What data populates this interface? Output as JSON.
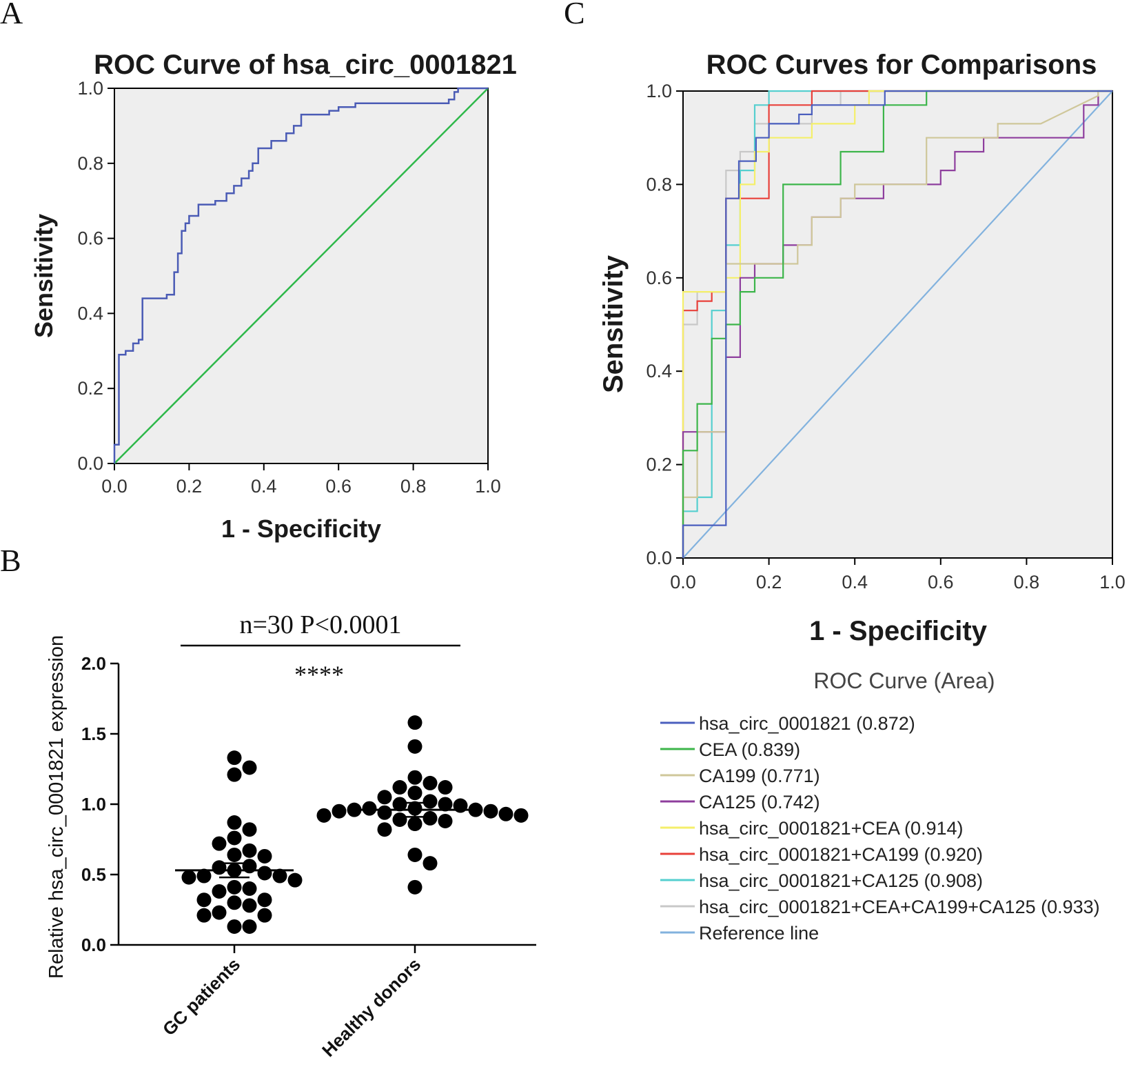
{
  "panels": {
    "a_letter": "A",
    "b_letter": "B",
    "c_letter": "C"
  },
  "colors": {
    "plot_bg": "#eeeeee",
    "panel_a_curve": "#4a5bb5",
    "panel_a_reference": "#2eb84a",
    "panel_b_points": "#000000"
  },
  "chart_data": [
    {
      "id": "A",
      "type": "line",
      "title": "ROC Curve of hsa_circ_0001821",
      "xlabel": "1 - Specificity",
      "ylabel": "Sensitivity",
      "xlim": [
        0,
        1
      ],
      "ylim": [
        0,
        1
      ],
      "xticks": [
        "0.0",
        "0.2",
        "0.4",
        "0.6",
        "0.8",
        "1.0"
      ],
      "yticks": [
        "0.0",
        "0.2",
        "0.4",
        "0.6",
        "0.8",
        "1.0"
      ],
      "series": [
        {
          "name": "hsa_circ_0001821",
          "color": "#4a5bb5",
          "points": [
            [
              0,
              0
            ],
            [
              0,
              0.05
            ],
            [
              0.012,
              0.05
            ],
            [
              0.012,
              0.29
            ],
            [
              0.03,
              0.29
            ],
            [
              0.03,
              0.3
            ],
            [
              0.05,
              0.3
            ],
            [
              0.05,
              0.32
            ],
            [
              0.065,
              0.32
            ],
            [
              0.065,
              0.33
            ],
            [
              0.075,
              0.33
            ],
            [
              0.075,
              0.44
            ],
            [
              0.14,
              0.44
            ],
            [
              0.14,
              0.45
            ],
            [
              0.16,
              0.45
            ],
            [
              0.16,
              0.51
            ],
            [
              0.17,
              0.51
            ],
            [
              0.17,
              0.56
            ],
            [
              0.18,
              0.56
            ],
            [
              0.18,
              0.62
            ],
            [
              0.19,
              0.62
            ],
            [
              0.19,
              0.64
            ],
            [
              0.2,
              0.64
            ],
            [
              0.2,
              0.66
            ],
            [
              0.225,
              0.66
            ],
            [
              0.225,
              0.69
            ],
            [
              0.27,
              0.69
            ],
            [
              0.27,
              0.7
            ],
            [
              0.3,
              0.7
            ],
            [
              0.3,
              0.72
            ],
            [
              0.32,
              0.72
            ],
            [
              0.32,
              0.74
            ],
            [
              0.34,
              0.74
            ],
            [
              0.34,
              0.76
            ],
            [
              0.36,
              0.76
            ],
            [
              0.36,
              0.78
            ],
            [
              0.37,
              0.78
            ],
            [
              0.37,
              0.8
            ],
            [
              0.385,
              0.8
            ],
            [
              0.385,
              0.84
            ],
            [
              0.42,
              0.84
            ],
            [
              0.42,
              0.86
            ],
            [
              0.46,
              0.86
            ],
            [
              0.46,
              0.88
            ],
            [
              0.48,
              0.88
            ],
            [
              0.48,
              0.9
            ],
            [
              0.5,
              0.9
            ],
            [
              0.5,
              0.93
            ],
            [
              0.575,
              0.93
            ],
            [
              0.575,
              0.94
            ],
            [
              0.6,
              0.94
            ],
            [
              0.6,
              0.95
            ],
            [
              0.645,
              0.95
            ],
            [
              0.645,
              0.96
            ],
            [
              0.895,
              0.96
            ],
            [
              0.895,
              0.97
            ],
            [
              0.91,
              0.97
            ],
            [
              0.91,
              0.99
            ],
            [
              0.92,
              0.99
            ],
            [
              0.92,
              1.0
            ],
            [
              1.0,
              1.0
            ]
          ]
        },
        {
          "name": "Reference line",
          "color": "#2eb84a",
          "points": [
            [
              0,
              0
            ],
            [
              1,
              1
            ]
          ]
        }
      ]
    },
    {
      "id": "B",
      "type": "scatter",
      "categories": [
        "GC patients",
        "Healthy donors"
      ],
      "ylabel": "Relative hsa_circ_0001821 expression",
      "ylim": [
        0,
        2.0
      ],
      "yticks": [
        "0.0",
        "0.5",
        "1.0",
        "1.5",
        "2.0"
      ],
      "annotation": "n=30   P<0.0001",
      "significance": "****",
      "groups": [
        {
          "name": "GC patients",
          "mean": 0.53,
          "sem": 0.05,
          "values": [
            1.33,
            1.26,
            1.21,
            0.87,
            0.82,
            0.76,
            0.72,
            0.67,
            0.64,
            0.63,
            0.56,
            0.55,
            0.53,
            0.51,
            0.49,
            0.49,
            0.48,
            0.46,
            0.41,
            0.4,
            0.38,
            0.32,
            0.32,
            0.3,
            0.28,
            0.23,
            0.21,
            0.21,
            0.13,
            0.13
          ]
        },
        {
          "name": "Healthy donors",
          "mean": 0.96,
          "sem": 0.05,
          "values": [
            1.58,
            1.41,
            1.19,
            1.15,
            1.12,
            1.12,
            1.08,
            1.05,
            1.02,
            1.0,
            1.0,
            0.99,
            0.97,
            0.97,
            0.96,
            0.96,
            0.95,
            0.95,
            0.94,
            0.93,
            0.92,
            0.92,
            0.9,
            0.89,
            0.88,
            0.86,
            0.82,
            0.64,
            0.58,
            0.41
          ]
        }
      ]
    },
    {
      "id": "C",
      "type": "line",
      "title": "ROC Curves for Comparisons",
      "xlabel": "1 - Specificity",
      "ylabel": "Sensitivity",
      "xlim": [
        0,
        1
      ],
      "ylim": [
        0,
        1
      ],
      "xticks": [
        "0.0",
        "0.2",
        "0.4",
        "0.6",
        "0.8",
        "1.0"
      ],
      "yticks": [
        "0.0",
        "0.2",
        "0.4",
        "0.6",
        "0.8",
        "1.0"
      ],
      "legend_title": "ROC Curve (Area)",
      "series": [
        {
          "name": "hsa_circ_0001821 (0.872)",
          "color": "#4b5fbe",
          "points": [
            [
              0,
              0
            ],
            [
              0,
              0.07
            ],
            [
              0.1,
              0.07
            ],
            [
              0.1,
              0.27
            ],
            [
              0.1,
              0.77
            ],
            [
              0.13,
              0.77
            ],
            [
              0.13,
              0.85
            ],
            [
              0.17,
              0.85
            ],
            [
              0.17,
              0.9
            ],
            [
              0.2,
              0.9
            ],
            [
              0.2,
              0.93
            ],
            [
              0.27,
              0.93
            ],
            [
              0.27,
              0.95
            ],
            [
              0.3,
              0.95
            ],
            [
              0.3,
              0.97
            ],
            [
              0.47,
              0.97
            ],
            [
              0.47,
              1.0
            ],
            [
              1.0,
              1.0
            ]
          ]
        },
        {
          "name": "CEA (0.839)",
          "color": "#3cb54a",
          "points": [
            [
              0,
              0
            ],
            [
              0,
              0.23
            ],
            [
              0.033,
              0.23
            ],
            [
              0.033,
              0.33
            ],
            [
              0.067,
              0.33
            ],
            [
              0.067,
              0.47
            ],
            [
              0.1,
              0.47
            ],
            [
              0.1,
              0.5
            ],
            [
              0.133,
              0.5
            ],
            [
              0.133,
              0.57
            ],
            [
              0.167,
              0.57
            ],
            [
              0.167,
              0.6
            ],
            [
              0.233,
              0.6
            ],
            [
              0.233,
              0.8
            ],
            [
              0.367,
              0.8
            ],
            [
              0.367,
              0.87
            ],
            [
              0.467,
              0.87
            ],
            [
              0.467,
              0.97
            ],
            [
              0.567,
              0.97
            ],
            [
              0.567,
              1.0
            ],
            [
              1.0,
              1.0
            ]
          ]
        },
        {
          "name": "CA199 (0.771)",
          "color": "#cfc79a",
          "points": [
            [
              0,
              0
            ],
            [
              0,
              0.13
            ],
            [
              0.033,
              0.13
            ],
            [
              0.033,
              0.27
            ],
            [
              0.1,
              0.27
            ],
            [
              0.1,
              0.63
            ],
            [
              0.267,
              0.63
            ],
            [
              0.267,
              0.67
            ],
            [
              0.3,
              0.67
            ],
            [
              0.3,
              0.73
            ],
            [
              0.367,
              0.73
            ],
            [
              0.367,
              0.77
            ],
            [
              0.4,
              0.77
            ],
            [
              0.4,
              0.8
            ],
            [
              0.567,
              0.8
            ],
            [
              0.567,
              0.9
            ],
            [
              0.733,
              0.9
            ],
            [
              0.733,
              0.93
            ],
            [
              0.833,
              0.93
            ],
            [
              0.967,
              0.99
            ],
            [
              0.967,
              1.0
            ],
            [
              1.0,
              1.0
            ]
          ]
        },
        {
          "name": "CA125 (0.742)",
          "color": "#8e3e9d",
          "points": [
            [
              0,
              0
            ],
            [
              0,
              0.27
            ],
            [
              0.1,
              0.27
            ],
            [
              0.1,
              0.43
            ],
            [
              0.133,
              0.43
            ],
            [
              0.133,
              0.6
            ],
            [
              0.167,
              0.6
            ],
            [
              0.167,
              0.63
            ],
            [
              0.233,
              0.63
            ],
            [
              0.233,
              0.67
            ],
            [
              0.3,
              0.67
            ],
            [
              0.3,
              0.73
            ],
            [
              0.367,
              0.73
            ],
            [
              0.367,
              0.77
            ],
            [
              0.467,
              0.77
            ],
            [
              0.467,
              0.8
            ],
            [
              0.6,
              0.8
            ],
            [
              0.6,
              0.83
            ],
            [
              0.633,
              0.83
            ],
            [
              0.633,
              0.87
            ],
            [
              0.7,
              0.87
            ],
            [
              0.7,
              0.9
            ],
            [
              0.933,
              0.9
            ],
            [
              0.933,
              0.97
            ],
            [
              0.967,
              0.97
            ],
            [
              0.967,
              1.0
            ],
            [
              1.0,
              1.0
            ]
          ]
        },
        {
          "name": "hsa_circ_0001821+CEA (0.914)",
          "color": "#f4ef6a",
          "points": [
            [
              0,
              0
            ],
            [
              0,
              0.57
            ],
            [
              0.1,
              0.57
            ],
            [
              0.1,
              0.6
            ],
            [
              0.133,
              0.6
            ],
            [
              0.133,
              0.8
            ],
            [
              0.167,
              0.8
            ],
            [
              0.167,
              0.87
            ],
            [
              0.2,
              0.87
            ],
            [
              0.2,
              0.9
            ],
            [
              0.3,
              0.9
            ],
            [
              0.3,
              0.93
            ],
            [
              0.4,
              0.93
            ],
            [
              0.4,
              0.97
            ],
            [
              0.433,
              0.97
            ],
            [
              0.433,
              1.0
            ],
            [
              1.0,
              1.0
            ]
          ]
        },
        {
          "name": "hsa_circ_0001821+CA199 (0.920)",
          "color": "#e8403a",
          "points": [
            [
              0,
              0
            ],
            [
              0,
              0.53
            ],
            [
              0.033,
              0.53
            ],
            [
              0.033,
              0.55
            ],
            [
              0.067,
              0.55
            ],
            [
              0.067,
              0.57
            ],
            [
              0.1,
              0.57
            ],
            [
              0.1,
              0.77
            ],
            [
              0.2,
              0.77
            ],
            [
              0.2,
              0.97
            ],
            [
              0.3,
              0.97
            ],
            [
              0.3,
              1.0
            ],
            [
              1.0,
              1.0
            ]
          ]
        },
        {
          "name": "hsa_circ_0001821+CA125 (0.908)",
          "color": "#55cfcf",
          "points": [
            [
              0,
              0
            ],
            [
              0,
              0.1
            ],
            [
              0.033,
              0.1
            ],
            [
              0.033,
              0.13
            ],
            [
              0.067,
              0.13
            ],
            [
              0.067,
              0.53
            ],
            [
              0.1,
              0.53
            ],
            [
              0.1,
              0.67
            ],
            [
              0.133,
              0.67
            ],
            [
              0.133,
              0.83
            ],
            [
              0.167,
              0.83
            ],
            [
              0.167,
              0.97
            ],
            [
              0.2,
              0.97
            ],
            [
              0.2,
              1.0
            ],
            [
              1.0,
              1.0
            ]
          ]
        },
        {
          "name": "hsa_circ_0001821+CEA+CA199+CA125 (0.933)",
          "color": "#c8c8c8",
          "points": [
            [
              0,
              0
            ],
            [
              0,
              0.5
            ],
            [
              0.033,
              0.5
            ],
            [
              0.033,
              0.57
            ],
            [
              0.1,
              0.57
            ],
            [
              0.1,
              0.83
            ],
            [
              0.133,
              0.83
            ],
            [
              0.133,
              0.87
            ],
            [
              0.167,
              0.87
            ],
            [
              0.167,
              0.93
            ],
            [
              0.3,
              0.93
            ],
            [
              0.3,
              0.97
            ],
            [
              0.367,
              0.97
            ],
            [
              0.367,
              1.0
            ],
            [
              1.0,
              1.0
            ]
          ]
        },
        {
          "name": "Reference line",
          "color": "#82b2de",
          "points": [
            [
              0,
              0
            ],
            [
              1,
              1
            ]
          ]
        }
      ]
    }
  ]
}
